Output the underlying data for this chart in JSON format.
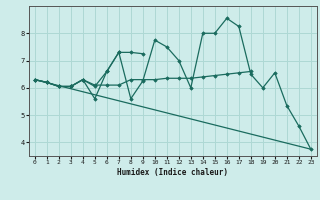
{
  "xlabel": "Humidex (Indice chaleur)",
  "background_color": "#ceecea",
  "grid_color": "#aed8d4",
  "line_color": "#1a6b5e",
  "x_values": [
    0,
    1,
    2,
    3,
    4,
    5,
    6,
    7,
    8,
    9,
    10,
    11,
    12,
    13,
    14,
    15,
    16,
    17,
    18,
    19,
    20,
    21,
    22,
    23
  ],
  "series_main": [
    6.3,
    6.2,
    6.05,
    6.05,
    6.3,
    5.6,
    6.6,
    7.3,
    5.6,
    6.25,
    7.75,
    7.5,
    7.0,
    6.0,
    8.0,
    8.0,
    8.55,
    8.25,
    6.5,
    6.0,
    6.55,
    5.35,
    4.6,
    3.75
  ],
  "series_flat": [
    6.3,
    6.2,
    6.05,
    6.05,
    6.3,
    6.1,
    6.1,
    6.1,
    6.3,
    6.3,
    6.3,
    6.35,
    6.35,
    6.35,
    6.4,
    6.45,
    6.5,
    6.55,
    6.6,
    null,
    null,
    null,
    null,
    null
  ],
  "series_short": [
    6.3,
    6.2,
    6.05,
    6.05,
    6.3,
    6.05,
    6.6,
    7.3,
    7.3,
    7.25,
    null,
    null,
    null,
    null,
    null,
    null,
    null,
    null,
    null,
    null,
    null,
    null,
    null,
    null
  ],
  "trend_x": [
    0,
    23
  ],
  "trend_y": [
    6.3,
    3.75
  ],
  "xlim": [
    -0.5,
    23.5
  ],
  "ylim": [
    3.5,
    9.0
  ],
  "yticks": [
    4,
    5,
    6,
    7,
    8
  ],
  "xticks": [
    0,
    1,
    2,
    3,
    4,
    5,
    6,
    7,
    8,
    9,
    10,
    11,
    12,
    13,
    14,
    15,
    16,
    17,
    18,
    19,
    20,
    21,
    22,
    23
  ],
  "xtick_labels": [
    "0",
    "1",
    "2",
    "3",
    "4",
    "5",
    "6",
    "7",
    "8",
    "9",
    "10",
    "11",
    "12",
    "13",
    "14",
    "15",
    "16",
    "17",
    "18",
    "19",
    "20",
    "21",
    "22",
    "23"
  ]
}
